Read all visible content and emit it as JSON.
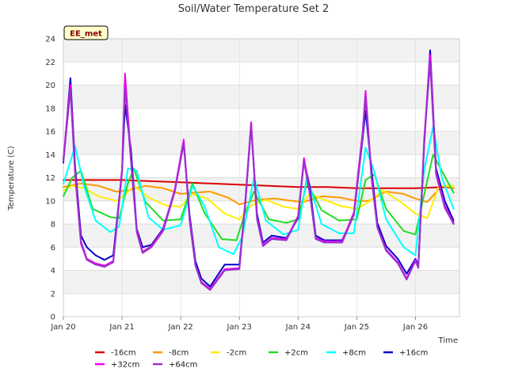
{
  "chart_data": {
    "type": "line",
    "title": "Soil/Water Temperature Set 2",
    "xlabel": "Time",
    "ylabel": "Temperature (C)",
    "badge": "EE_met",
    "ylim": [
      0,
      24
    ],
    "xlim": [
      0,
      6.75
    ],
    "yticks": [
      0,
      2,
      4,
      6,
      8,
      10,
      12,
      14,
      16,
      18,
      20,
      22,
      24
    ],
    "xticks": [
      {
        "x": 0,
        "label": "Jan 20"
      },
      {
        "x": 1,
        "label": "Jan 21"
      },
      {
        "x": 2,
        "label": "Jan 22"
      },
      {
        "x": 3,
        "label": "Jan 23"
      },
      {
        "x": 4,
        "label": "Jan 24"
      },
      {
        "x": 5,
        "label": "Jan 25"
      },
      {
        "x": 6,
        "label": "Jan 26"
      }
    ],
    "x_units": "days since Jan 20",
    "grid": true,
    "legend_position": "bottom",
    "series": [
      {
        "name": "-16cm",
        "color": "#dd0000",
        "x": [
          0,
          0.5,
          1,
          1.5,
          2,
          2.5,
          3,
          3.5,
          4,
          4.5,
          5,
          5.5,
          6,
          6.5,
          6.65
        ],
        "y": [
          11.8,
          11.8,
          11.8,
          11.7,
          11.6,
          11.5,
          11.4,
          11.3,
          11.2,
          11.2,
          11.1,
          11.1,
          11.1,
          11.2,
          11.1
        ]
      },
      {
        "name": "-8cm",
        "color": "#ff9900",
        "x": [
          0,
          0.3,
          0.6,
          0.9,
          1.1,
          1.4,
          1.7,
          2.0,
          2.2,
          2.5,
          2.8,
          3.0,
          3.3,
          3.6,
          3.9,
          4.1,
          4.4,
          4.7,
          5.0,
          5.2,
          5.5,
          5.8,
          6.0,
          6.2,
          6.45,
          6.65
        ],
        "y": [
          11.2,
          11.5,
          11.3,
          10.8,
          10.9,
          11.3,
          11.1,
          10.6,
          10.7,
          10.8,
          10.3,
          9.7,
          10.1,
          10.2,
          10.0,
          9.9,
          10.4,
          10.3,
          10.0,
          10.0,
          10.8,
          10.6,
          10.2,
          9.9,
          11.3,
          11.1
        ]
      },
      {
        "name": "-2cm",
        "color": "#ffee00",
        "x": [
          0,
          0.15,
          0.35,
          0.6,
          0.9,
          1.05,
          1.2,
          1.45,
          1.75,
          2.0,
          2.2,
          2.45,
          2.75,
          3.0,
          3.2,
          3.45,
          3.75,
          4.0,
          4.2,
          4.4,
          4.7,
          5.0,
          5.2,
          5.45,
          5.75,
          6.0,
          6.2,
          6.4,
          6.65
        ],
        "y": [
          10.9,
          11.3,
          11.1,
          10.4,
          10.0,
          10.5,
          11.3,
          10.3,
          9.6,
          9.5,
          10.6,
          10.2,
          8.9,
          8.4,
          9.6,
          10.1,
          9.5,
          9.3,
          10.6,
          10.2,
          9.6,
          9.3,
          9.9,
          10.9,
          9.9,
          8.9,
          8.5,
          11.3,
          11.3
        ]
      },
      {
        "name": "+2cm",
        "color": "#22dd22",
        "x": [
          0,
          0.15,
          0.3,
          0.5,
          0.8,
          0.95,
          1.1,
          1.2,
          1.4,
          1.7,
          2.0,
          2.2,
          2.4,
          2.7,
          2.95,
          3.1,
          3.25,
          3.5,
          3.8,
          4.0,
          4.15,
          4.4,
          4.7,
          5.0,
          5.15,
          5.3,
          5.5,
          5.8,
          6.0,
          6.15,
          6.3,
          6.65
        ],
        "y": [
          10.4,
          12.0,
          12.6,
          9.3,
          8.6,
          8.5,
          11.5,
          12.8,
          9.9,
          8.3,
          8.4,
          11.5,
          9.0,
          6.7,
          6.6,
          9.0,
          10.8,
          8.4,
          8.1,
          8.4,
          11.6,
          9.2,
          8.3,
          8.4,
          11.8,
          12.3,
          9.3,
          7.4,
          7.1,
          10.6,
          14.0,
          10.7
        ]
      },
      {
        "name": "+8cm",
        "color": "#00ffff",
        "x": [
          0,
          0.2,
          0.35,
          0.55,
          0.8,
          0.95,
          1.1,
          1.25,
          1.45,
          1.7,
          2.0,
          2.2,
          2.4,
          2.65,
          2.9,
          3.05,
          3.25,
          3.45,
          3.75,
          4.0,
          4.15,
          4.4,
          4.7,
          4.95,
          5.15,
          5.3,
          5.5,
          5.8,
          6.0,
          6.15,
          6.3,
          6.45,
          6.65
        ],
        "y": [
          11.5,
          14.7,
          11.3,
          8.3,
          7.3,
          7.8,
          12.8,
          12.6,
          8.6,
          7.5,
          7.9,
          11.3,
          9.6,
          6.0,
          5.4,
          6.9,
          12.0,
          8.3,
          7.1,
          7.5,
          12.1,
          8.0,
          7.2,
          7.2,
          14.6,
          12.5,
          8.4,
          6.0,
          5.3,
          12.7,
          16.4,
          12.0,
          9.3
        ]
      },
      {
        "name": "+16cm",
        "color": "#0000cc",
        "x": [
          0,
          0.12,
          0.2,
          0.3,
          0.4,
          0.55,
          0.7,
          0.85,
          1.0,
          1.05,
          1.15,
          1.25,
          1.35,
          1.5,
          1.7,
          1.9,
          2.05,
          2.15,
          2.25,
          2.35,
          2.5,
          2.75,
          3.0,
          3.1,
          3.2,
          3.3,
          3.4,
          3.55,
          3.8,
          4.0,
          4.1,
          4.2,
          4.3,
          4.45,
          4.75,
          4.95,
          5.1,
          5.15,
          5.25,
          5.35,
          5.5,
          5.7,
          5.85,
          6.0,
          6.05,
          6.15,
          6.25,
          6.35,
          6.5,
          6.65
        ],
        "y": [
          13.3,
          20.6,
          13.0,
          7.0,
          6.0,
          5.3,
          4.9,
          5.3,
          12.6,
          18.3,
          14.5,
          7.6,
          6.0,
          6.2,
          7.6,
          10.9,
          15.0,
          8.8,
          4.8,
          3.3,
          2.6,
          4.5,
          4.5,
          9.7,
          16.6,
          8.9,
          6.4,
          7.0,
          6.8,
          8.5,
          13.5,
          11.2,
          7.0,
          6.6,
          6.6,
          8.8,
          15.4,
          17.8,
          12.7,
          8.1,
          6.1,
          5.0,
          3.7,
          5.0,
          4.5,
          15.0,
          23.0,
          12.8,
          10.0,
          8.3
        ]
      },
      {
        "name": "+32cm",
        "color": "#ee00ee",
        "x": [
          0,
          0.12,
          0.2,
          0.3,
          0.4,
          0.55,
          0.7,
          0.85,
          1.0,
          1.05,
          1.15,
          1.25,
          1.35,
          1.5,
          1.7,
          1.9,
          2.05,
          2.15,
          2.25,
          2.35,
          2.5,
          2.75,
          3.0,
          3.1,
          3.2,
          3.3,
          3.4,
          3.55,
          3.8,
          4.0,
          4.1,
          4.2,
          4.3,
          4.45,
          4.75,
          4.95,
          5.1,
          5.15,
          5.25,
          5.35,
          5.5,
          5.7,
          5.85,
          6.0,
          6.05,
          6.15,
          6.25,
          6.35,
          6.5,
          6.65
        ],
        "y": [
          13.6,
          20.0,
          12.6,
          6.5,
          5.0,
          4.6,
          4.4,
          4.8,
          12.8,
          21.0,
          13.8,
          7.5,
          5.6,
          6.1,
          7.5,
          11.0,
          15.3,
          8.5,
          4.5,
          3.0,
          2.4,
          4.1,
          4.2,
          10.0,
          16.8,
          8.6,
          6.2,
          6.8,
          6.7,
          8.7,
          13.7,
          10.8,
          6.8,
          6.5,
          6.5,
          9.0,
          16.0,
          19.5,
          12.2,
          7.8,
          5.8,
          4.7,
          3.3,
          4.9,
          4.3,
          15.5,
          22.6,
          12.5,
          9.6,
          8.1
        ]
      },
      {
        "name": "+64cm",
        "color": "#9933cc",
        "x": [
          0,
          0.12,
          0.2,
          0.3,
          0.4,
          0.55,
          0.7,
          0.85,
          1.0,
          1.05,
          1.15,
          1.25,
          1.35,
          1.5,
          1.7,
          1.9,
          2.05,
          2.15,
          2.25,
          2.35,
          2.5,
          2.75,
          3.0,
          3.1,
          3.2,
          3.3,
          3.4,
          3.55,
          3.8,
          4.0,
          4.1,
          4.2,
          4.3,
          4.45,
          4.75,
          4.95,
          5.1,
          5.15,
          5.25,
          5.35,
          5.5,
          5.7,
          5.85,
          6.0,
          6.05,
          6.15,
          6.25,
          6.35,
          6.5,
          6.65
        ],
        "y": [
          13.4,
          19.6,
          12.3,
          6.3,
          4.9,
          4.5,
          4.3,
          4.7,
          12.5,
          19.8,
          13.5,
          7.3,
          5.5,
          6.0,
          7.4,
          10.8,
          15.0,
          8.3,
          4.4,
          2.9,
          2.3,
          4.0,
          4.1,
          9.8,
          16.5,
          8.4,
          6.1,
          6.7,
          6.6,
          8.6,
          13.4,
          10.6,
          6.7,
          6.4,
          6.4,
          8.8,
          15.6,
          19.0,
          12.0,
          7.7,
          5.7,
          4.6,
          3.2,
          4.8,
          4.2,
          15.2,
          22.0,
          12.3,
          9.4,
          8.0
        ]
      }
    ]
  }
}
